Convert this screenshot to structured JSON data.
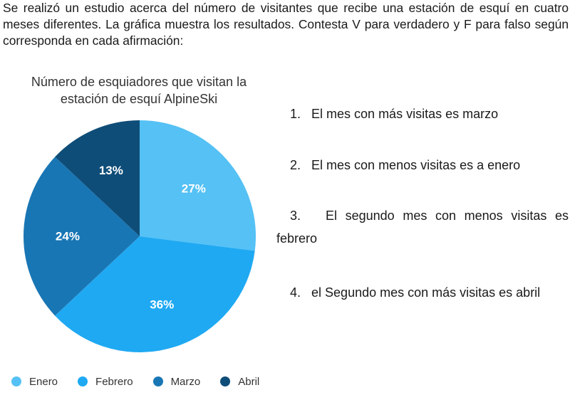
{
  "intro": "Se realizó un estudio acerca del número de visitantes que recibe una estación de esquí en cuatro meses diferentes. La gráfica muestra los resultados. Contesta V para verdadero y F para falso según corresponda en cada afirmación:",
  "chart_data": {
    "type": "pie",
    "title": "Número de esquiadores que visitan la estación de esquí AlpineSki",
    "categories": [
      "Enero",
      "Febrero",
      "Marzo",
      "Abril"
    ],
    "values": [
      27,
      36,
      24,
      13
    ],
    "labels": [
      "27%",
      "36%",
      "24%",
      "13%"
    ],
    "colors": [
      "#55c1f5",
      "#1fa9f2",
      "#1976b4",
      "#0e4d78"
    ],
    "label_color": "#ffffff",
    "legend_position": "bottom"
  },
  "statements": [
    {
      "num": "1.",
      "text": "El mes con más visitas es marzo"
    },
    {
      "num": "2.",
      "text": "El mes con menos visitas es a enero"
    },
    {
      "num": "3.",
      "text": "El segundo mes con menos visitas es febrero"
    },
    {
      "num": "4.",
      "text": "el Segundo mes con más visitas es abril"
    }
  ]
}
